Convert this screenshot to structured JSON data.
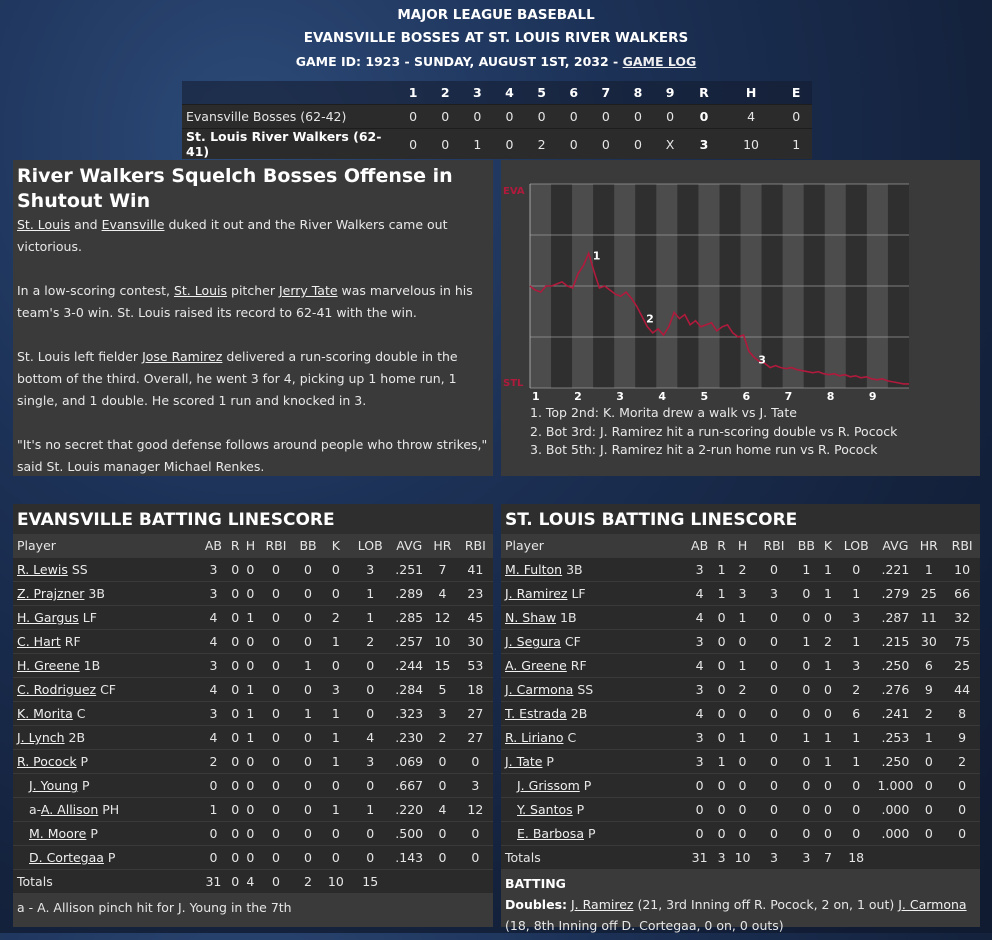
{
  "header": {
    "league": "MAJOR LEAGUE BASEBALL",
    "matchup": "EVANSVILLE BOSSES AT ST. LOUIS RIVER WALKERS",
    "game_info": "GAME ID: 1923 - SUNDAY, AUGUST 1ST, 2032 - ",
    "game_log_link": "GAME LOG"
  },
  "linescore": {
    "columns": [
      "1",
      "2",
      "3",
      "4",
      "5",
      "6",
      "7",
      "8",
      "9",
      "R",
      "H",
      "E"
    ],
    "rows": [
      {
        "team": "Evansville Bosses (62-42)",
        "cells": [
          "0",
          "0",
          "0",
          "0",
          "0",
          "0",
          "0",
          "0",
          "0",
          "0",
          "4",
          "0"
        ]
      },
      {
        "team": "St. Louis River Walkers (62-41)",
        "cells": [
          "0",
          "0",
          "1",
          "0",
          "2",
          "0",
          "0",
          "0",
          "X",
          "3",
          "10",
          "1"
        ]
      }
    ]
  },
  "story": {
    "headline": "River Walkers Squelch Bosses Offense in Shutout Win",
    "p1": [
      {
        "t": "St. Louis",
        "link": true
      },
      {
        "t": " and "
      },
      {
        "t": "Evansville",
        "link": true
      },
      {
        "t": " duked it out and the River Walkers came out victorious."
      }
    ],
    "p2": [
      {
        "t": "In a low-scoring contest, "
      },
      {
        "t": "St. Louis",
        "link": true
      },
      {
        "t": " pitcher "
      },
      {
        "t": "Jerry Tate",
        "link": true
      },
      {
        "t": " was marvelous in his team's 3-0 win. St. Louis raised its record to 62-41 with the win."
      }
    ],
    "p3": [
      {
        "t": "St. Louis left fielder "
      },
      {
        "t": "Jose Ramirez",
        "link": true
      },
      {
        "t": " delivered a run-scoring double in the bottom of the third. Overall, he went 3 for 4, picking up 1 home run, 1 single, and 1 double. He scored 1 run and knocked in 3."
      }
    ],
    "p4": [
      {
        "t": "\"It's no secret that good defense follows around people who throw strikes,\" said St. Louis manager Michael Renkes."
      }
    ]
  },
  "win_prob": {
    "top_label": "EVA",
    "bottom_label": "STL",
    "innings": [
      "1",
      "2",
      "3",
      "4",
      "5",
      "6",
      "7",
      "8",
      "9"
    ],
    "series": [
      0.5,
      0.48,
      0.47,
      0.5,
      0.5,
      0.51,
      0.52,
      0.5,
      0.49,
      0.56,
      0.6,
      0.66,
      0.57,
      0.49,
      0.5,
      0.48,
      0.46,
      0.45,
      0.47,
      0.44,
      0.4,
      0.35,
      0.3,
      0.27,
      0.29,
      0.26,
      0.3,
      0.37,
      0.34,
      0.36,
      0.31,
      0.33,
      0.3,
      0.31,
      0.32,
      0.28,
      0.3,
      0.31,
      0.27,
      0.25,
      0.26,
      0.18,
      0.15,
      0.13,
      0.12,
      0.1,
      0.11,
      0.1,
      0.095,
      0.1,
      0.09,
      0.085,
      0.08,
      0.075,
      0.08,
      0.07,
      0.065,
      0.07,
      0.06,
      0.065,
      0.055,
      0.06,
      0.05,
      0.055,
      0.045,
      0.04,
      0.045,
      0.035,
      0.03,
      0.025,
      0.02,
      0.02
    ],
    "markers": [
      {
        "label": "1",
        "index": 11
      },
      {
        "label": "2",
        "index": 21
      },
      {
        "label": "3",
        "index": 42
      }
    ],
    "notes": [
      "1. Top 2nd: K. Morita drew a walk vs J. Tate",
      "2. Bot 3rd: J. Ramirez hit a run-scoring double vs R. Pocock",
      "3. Bot 5th: J. Ramirez hit a 2-run home run vs R. Pocock"
    ],
    "line_color": "#b01a3c"
  },
  "batting_headers": [
    "Player",
    "AB",
    "R",
    "H",
    "RBI",
    "BB",
    "K",
    "LOB",
    "AVG",
    "HR",
    "RBI"
  ],
  "evansville": {
    "title": "EVANSVILLE BATTING LINESCORE",
    "players": [
      {
        "name": "R. Lewis",
        "pos": " SS",
        "stats": [
          "3",
          "0",
          "0",
          "0",
          "0",
          "0",
          "3",
          ".251",
          "7",
          "41"
        ]
      },
      {
        "name": "Z. Prajzner",
        "pos": " 3B",
        "stats": [
          "3",
          "0",
          "0",
          "0",
          "0",
          "0",
          "1",
          ".289",
          "4",
          "23"
        ]
      },
      {
        "name": "H. Gargus",
        "pos": " LF",
        "stats": [
          "4",
          "0",
          "1",
          "0",
          "0",
          "2",
          "1",
          ".285",
          "12",
          "45"
        ]
      },
      {
        "name": "C. Hart",
        "pos": " RF",
        "stats": [
          "4",
          "0",
          "0",
          "0",
          "0",
          "1",
          "2",
          ".257",
          "10",
          "30"
        ]
      },
      {
        "name": "H. Greene",
        "pos": " 1B",
        "stats": [
          "3",
          "0",
          "0",
          "0",
          "1",
          "0",
          "0",
          ".244",
          "15",
          "53"
        ]
      },
      {
        "name": "C. Rodriguez",
        "pos": " CF",
        "stats": [
          "4",
          "0",
          "1",
          "0",
          "0",
          "3",
          "0",
          ".284",
          "5",
          "18"
        ]
      },
      {
        "name": "K. Morita",
        "pos": " C",
        "stats": [
          "3",
          "0",
          "1",
          "0",
          "1",
          "1",
          "0",
          ".323",
          "3",
          "27"
        ]
      },
      {
        "name": "J. Lynch",
        "pos": " 2B",
        "stats": [
          "4",
          "0",
          "1",
          "0",
          "0",
          "1",
          "4",
          ".230",
          "2",
          "27"
        ]
      },
      {
        "name": "R. Pocock",
        "pos": " P",
        "stats": [
          "2",
          "0",
          "0",
          "0",
          "0",
          "1",
          "3",
          ".069",
          "0",
          "0"
        ]
      },
      {
        "name": "J. Young",
        "pos": " P",
        "sub": true,
        "stats": [
          "0",
          "0",
          "0",
          "0",
          "0",
          "0",
          "0",
          ".667",
          "0",
          "3"
        ]
      },
      {
        "prefix": "a-",
        "name": "A. Allison",
        "pos": " PH",
        "sub": true,
        "stats": [
          "1",
          "0",
          "0",
          "0",
          "0",
          "1",
          "1",
          ".220",
          "4",
          "12"
        ]
      },
      {
        "name": "M. Moore",
        "pos": " P",
        "sub": true,
        "stats": [
          "0",
          "0",
          "0",
          "0",
          "0",
          "0",
          "0",
          ".500",
          "0",
          "0"
        ]
      },
      {
        "name": "D. Cortegaa",
        "pos": " P",
        "sub": true,
        "stats": [
          "0",
          "0",
          "0",
          "0",
          "0",
          "0",
          "0",
          ".143",
          "0",
          "0"
        ]
      }
    ],
    "totals_label": "Totals",
    "totals": [
      "31",
      "0",
      "4",
      "0",
      "2",
      "10",
      "15",
      "",
      "",
      ""
    ],
    "footnote": "a - A. Allison pinch hit for J. Young in the 7th"
  },
  "stlouis": {
    "title": "ST. LOUIS BATTING LINESCORE",
    "players": [
      {
        "name": "M. Fulton",
        "pos": " 3B",
        "stats": [
          "3",
          "1",
          "2",
          "0",
          "1",
          "1",
          "0",
          ".221",
          "1",
          "10"
        ]
      },
      {
        "name": "J. Ramirez",
        "pos": " LF",
        "stats": [
          "4",
          "1",
          "3",
          "3",
          "0",
          "1",
          "1",
          ".279",
          "25",
          "66"
        ]
      },
      {
        "name": "N. Shaw",
        "pos": " 1B",
        "stats": [
          "4",
          "0",
          "1",
          "0",
          "0",
          "0",
          "3",
          ".287",
          "11",
          "32"
        ]
      },
      {
        "name": "J. Segura",
        "pos": " CF",
        "stats": [
          "3",
          "0",
          "0",
          "0",
          "1",
          "2",
          "1",
          ".215",
          "30",
          "75"
        ]
      },
      {
        "name": "A. Greene",
        "pos": " RF",
        "stats": [
          "4",
          "0",
          "1",
          "0",
          "0",
          "1",
          "3",
          ".250",
          "6",
          "25"
        ]
      },
      {
        "name": "J. Carmona",
        "pos": " SS",
        "stats": [
          "3",
          "0",
          "2",
          "0",
          "0",
          "0",
          "2",
          ".276",
          "9",
          "44"
        ]
      },
      {
        "name": "T. Estrada",
        "pos": " 2B",
        "stats": [
          "4",
          "0",
          "0",
          "0",
          "0",
          "0",
          "6",
          ".241",
          "2",
          "8"
        ]
      },
      {
        "name": "R. Liriano",
        "pos": " C",
        "stats": [
          "3",
          "0",
          "1",
          "0",
          "1",
          "1",
          "1",
          ".253",
          "1",
          "9"
        ]
      },
      {
        "name": "J. Tate",
        "pos": " P",
        "stats": [
          "3",
          "1",
          "0",
          "0",
          "0",
          "1",
          "1",
          ".250",
          "0",
          "2"
        ]
      },
      {
        "name": "J. Grissom",
        "pos": " P",
        "sub": true,
        "stats": [
          "0",
          "0",
          "0",
          "0",
          "0",
          "0",
          "0",
          "1.000",
          "0",
          "0"
        ]
      },
      {
        "name": "Y. Santos",
        "pos": " P",
        "sub": true,
        "stats": [
          "0",
          "0",
          "0",
          "0",
          "0",
          "0",
          "0",
          ".000",
          "0",
          "0"
        ]
      },
      {
        "name": "E. Barbosa",
        "pos": " P",
        "sub": true,
        "stats": [
          "0",
          "0",
          "0",
          "0",
          "0",
          "0",
          "0",
          ".000",
          "0",
          "0"
        ]
      }
    ],
    "totals_label": "Totals",
    "totals": [
      "31",
      "3",
      "10",
      "3",
      "3",
      "7",
      "18",
      "",
      "",
      ""
    ],
    "batting_label": "BATTING",
    "doubles_label": "Doubles:",
    "doubles": [
      {
        "name": "J. Ramirez",
        "detail": " (21, 3rd Inning off R. Pocock, 2 on, 1 out) "
      },
      {
        "name": "J. Carmona",
        "detail": " (18, 8th Inning off D. Cortegaa, 0 on, 0 outs)"
      }
    ]
  }
}
